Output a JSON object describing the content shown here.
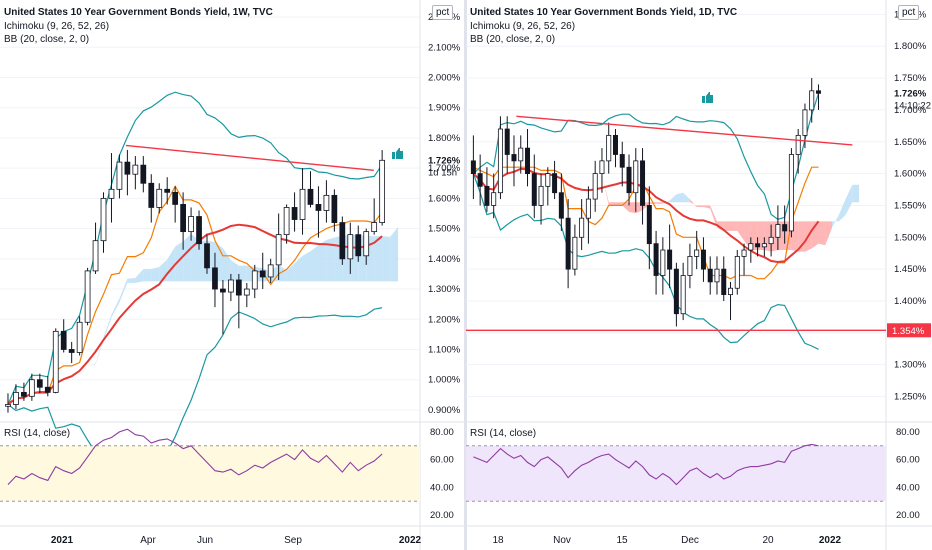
{
  "chart_data": [
    {
      "type": "candlestick",
      "title": "United States 10 Year Government Bonds Yield, 1W, TVC",
      "indicators": [
        "Ichimoku (9, 26, 52, 26)",
        "BB (20, close, 2, 0)"
      ],
      "unit": "pct",
      "y_axis": [
        "2.200%",
        "2.100%",
        "2.000%",
        "1.900%",
        "1.800%",
        "1.700%",
        "1.600%",
        "1.500%",
        "1.400%",
        "1.300%",
        "1.200%",
        "1.100%",
        "1.000%",
        "0.900%"
      ],
      "ylim": [
        0.86,
        2.23
      ],
      "x_axis": [
        "2021",
        "Apr",
        "Jun",
        "Sep",
        "2022"
      ],
      "last_price": "1.726%",
      "countdown": "1d 15h",
      "trendline": [
        {
          "x": 0.3,
          "y": 1.775
        },
        {
          "x": 0.89,
          "y": 1.693
        }
      ],
      "candles": [
        [
          0.912,
          0.955,
          0.891,
          0.918
        ],
        [
          0.918,
          0.985,
          0.903,
          0.958
        ],
        [
          0.958,
          0.99,
          0.93,
          0.945
        ],
        [
          0.945,
          1.02,
          0.93,
          1.0
        ],
        [
          1.0,
          1.02,
          0.955,
          0.975
        ],
        [
          0.975,
          1.012,
          0.945,
          0.958
        ],
        [
          0.958,
          1.17,
          0.955,
          1.16
        ],
        [
          1.16,
          1.2,
          1.09,
          1.1
        ],
        [
          1.1,
          1.125,
          1.055,
          1.09
        ],
        [
          1.09,
          1.21,
          1.08,
          1.19
        ],
        [
          1.19,
          1.37,
          1.18,
          1.36
        ],
        [
          1.36,
          1.52,
          1.35,
          1.46
        ],
        [
          1.46,
          1.62,
          1.42,
          1.6
        ],
        [
          1.6,
          1.75,
          1.52,
          1.63
        ],
        [
          1.63,
          1.745,
          1.6,
          1.72
        ],
        [
          1.72,
          1.76,
          1.61,
          1.68
        ],
        [
          1.68,
          1.74,
          1.63,
          1.71
        ],
        [
          1.71,
          1.74,
          1.62,
          1.65
        ],
        [
          1.65,
          1.68,
          1.52,
          1.57
        ],
        [
          1.57,
          1.65,
          1.55,
          1.63
        ],
        [
          1.63,
          1.67,
          1.58,
          1.62
        ],
        [
          1.62,
          1.64,
          1.52,
          1.58
        ],
        [
          1.58,
          1.62,
          1.43,
          1.49
        ],
        [
          1.49,
          1.57,
          1.46,
          1.54
        ],
        [
          1.54,
          1.56,
          1.43,
          1.45
        ],
        [
          1.45,
          1.48,
          1.35,
          1.37
        ],
        [
          1.37,
          1.42,
          1.24,
          1.3
        ],
        [
          1.3,
          1.33,
          1.15,
          1.29
        ],
        [
          1.29,
          1.35,
          1.26,
          1.33
        ],
        [
          1.33,
          1.35,
          1.17,
          1.28
        ],
        [
          1.28,
          1.32,
          1.24,
          1.3
        ],
        [
          1.3,
          1.38,
          1.27,
          1.36
        ],
        [
          1.36,
          1.42,
          1.3,
          1.34
        ],
        [
          1.34,
          1.4,
          1.32,
          1.38
        ],
        [
          1.38,
          1.55,
          1.33,
          1.48
        ],
        [
          1.48,
          1.58,
          1.45,
          1.57
        ],
        [
          1.57,
          1.62,
          1.49,
          1.53
        ],
        [
          1.53,
          1.7,
          1.48,
          1.63
        ],
        [
          1.63,
          1.69,
          1.57,
          1.58
        ],
        [
          1.58,
          1.64,
          1.47,
          1.56
        ],
        [
          1.56,
          1.66,
          1.52,
          1.61
        ],
        [
          1.61,
          1.63,
          1.49,
          1.52
        ],
        [
          1.52,
          1.54,
          1.38,
          1.4
        ],
        [
          1.4,
          1.52,
          1.35,
          1.48
        ],
        [
          1.48,
          1.51,
          1.39,
          1.41
        ],
        [
          1.41,
          1.5,
          1.38,
          1.49
        ],
        [
          1.49,
          1.6,
          1.48,
          1.52
        ],
        [
          1.52,
          1.76,
          1.51,
          1.726
        ]
      ],
      "rsi": {
        "label": "RSI (14, close)",
        "y_axis": [
          "80.00",
          "60.00",
          "40.00",
          "20.00"
        ],
        "values": [
          42,
          48,
          46,
          50,
          47,
          45,
          55,
          52,
          50,
          54,
          62,
          70,
          74,
          76,
          80,
          82,
          78,
          77,
          72,
          74,
          75,
          72,
          68,
          70,
          64,
          58,
          52,
          51,
          53,
          49,
          52,
          56,
          54,
          58,
          61,
          64,
          60,
          67,
          61,
          58,
          63,
          57,
          51,
          58,
          52,
          56,
          59,
          64
        ]
      }
    },
    {
      "type": "candlestick",
      "title": "United States 10 Year Government Bonds Yield, 1D, TVC",
      "indicators": [
        "Ichimoku (9, 26, 52, 26)",
        "BB (20, close, 2, 0)"
      ],
      "unit": "pct",
      "y_axis": [
        "1.850%",
        "1.800%",
        "1.750%",
        "1.700%",
        "1.650%",
        "1.600%",
        "1.550%",
        "1.500%",
        "1.450%",
        "1.400%",
        "1.350%",
        "1.300%",
        "1.250%"
      ],
      "ylim": [
        1.21,
        1.86
      ],
      "x_axis": [
        "18",
        "Nov",
        "15",
        "Dec",
        "20",
        "2022"
      ],
      "last_price": "1.726%",
      "countdown": "14:10:22",
      "horizontal_level": "1.354%",
      "trendline": [
        {
          "x": 0.12,
          "y": 1.69
        },
        {
          "x": 0.92,
          "y": 1.645
        }
      ],
      "candles": [
        [
          1.62,
          1.66,
          1.56,
          1.6
        ],
        [
          1.6,
          1.63,
          1.55,
          1.58
        ],
        [
          1.58,
          1.61,
          1.54,
          1.55
        ],
        [
          1.55,
          1.6,
          1.53,
          1.57
        ],
        [
          1.57,
          1.69,
          1.56,
          1.67
        ],
        [
          1.67,
          1.69,
          1.6,
          1.63
        ],
        [
          1.63,
          1.66,
          1.58,
          1.62
        ],
        [
          1.62,
          1.66,
          1.6,
          1.64
        ],
        [
          1.64,
          1.67,
          1.58,
          1.6
        ],
        [
          1.6,
          1.63,
          1.53,
          1.55
        ],
        [
          1.55,
          1.6,
          1.52,
          1.58
        ],
        [
          1.58,
          1.61,
          1.55,
          1.6
        ],
        [
          1.6,
          1.62,
          1.56,
          1.57
        ],
        [
          1.57,
          1.6,
          1.51,
          1.53
        ],
        [
          1.53,
          1.56,
          1.42,
          1.45
        ],
        [
          1.45,
          1.52,
          1.44,
          1.5
        ],
        [
          1.5,
          1.56,
          1.48,
          1.53
        ],
        [
          1.53,
          1.58,
          1.49,
          1.56
        ],
        [
          1.56,
          1.62,
          1.54,
          1.6
        ],
        [
          1.6,
          1.64,
          1.57,
          1.62
        ],
        [
          1.62,
          1.68,
          1.6,
          1.66
        ],
        [
          1.66,
          1.67,
          1.61,
          1.63
        ],
        [
          1.63,
          1.65,
          1.58,
          1.61
        ],
        [
          1.61,
          1.63,
          1.55,
          1.57
        ],
        [
          1.57,
          1.64,
          1.54,
          1.62
        ],
        [
          1.62,
          1.64,
          1.52,
          1.55
        ],
        [
          1.55,
          1.58,
          1.45,
          1.49
        ],
        [
          1.49,
          1.51,
          1.41,
          1.44
        ],
        [
          1.44,
          1.5,
          1.41,
          1.48
        ],
        [
          1.48,
          1.52,
          1.42,
          1.45
        ],
        [
          1.45,
          1.46,
          1.36,
          1.38
        ],
        [
          1.38,
          1.46,
          1.37,
          1.44
        ],
        [
          1.44,
          1.49,
          1.42,
          1.47
        ],
        [
          1.47,
          1.51,
          1.45,
          1.48
        ],
        [
          1.48,
          1.5,
          1.43,
          1.45
        ],
        [
          1.45,
          1.47,
          1.41,
          1.43
        ],
        [
          1.43,
          1.47,
          1.41,
          1.45
        ],
        [
          1.45,
          1.47,
          1.4,
          1.41
        ],
        [
          1.41,
          1.43,
          1.37,
          1.42
        ],
        [
          1.42,
          1.48,
          1.41,
          1.47
        ],
        [
          1.47,
          1.49,
          1.44,
          1.48
        ],
        [
          1.48,
          1.5,
          1.46,
          1.49
        ],
        [
          1.49,
          1.5,
          1.47,
          1.485
        ],
        [
          1.485,
          1.5,
          1.47,
          1.49
        ],
        [
          1.49,
          1.52,
          1.47,
          1.5
        ],
        [
          1.5,
          1.55,
          1.48,
          1.52
        ],
        [
          1.52,
          1.55,
          1.49,
          1.51
        ],
        [
          1.51,
          1.64,
          1.5,
          1.63
        ],
        [
          1.63,
          1.67,
          1.6,
          1.66
        ],
        [
          1.66,
          1.71,
          1.64,
          1.7
        ],
        [
          1.7,
          1.75,
          1.68,
          1.73
        ],
        [
          1.73,
          1.74,
          1.7,
          1.726
        ]
      ],
      "rsi": {
        "label": "RSI (14, close)",
        "y_axis": [
          "80.00",
          "60.00",
          "40.00",
          "20.00"
        ],
        "values": [
          62,
          60,
          58,
          63,
          68,
          64,
          61,
          63,
          58,
          55,
          60,
          62,
          58,
          54,
          47,
          52,
          56,
          58,
          61,
          63,
          64,
          60,
          57,
          54,
          59,
          55,
          49,
          46,
          50,
          47,
          42,
          47,
          52,
          54,
          50,
          47,
          50,
          46,
          48,
          52,
          54,
          55,
          55,
          56,
          57,
          59,
          58,
          66,
          68,
          70,
          71,
          70
        ]
      }
    }
  ],
  "colors": {
    "up": "#ffffff",
    "down": "#131722",
    "trendline": "#f23645",
    "bb_line": "#1a98a0",
    "ichimoku_base": "#e53935",
    "ichimoku_conv": "#f57c00",
    "cloud_bear": "#ff9e9e",
    "cloud_bull": "#b3dbf5",
    "rsi_line": "#8e3ba0",
    "rsi_band_left": "#fff9e0",
    "rsi_band_right": "#f0e6fb"
  },
  "icons": [
    "thumbs-up-icon"
  ]
}
